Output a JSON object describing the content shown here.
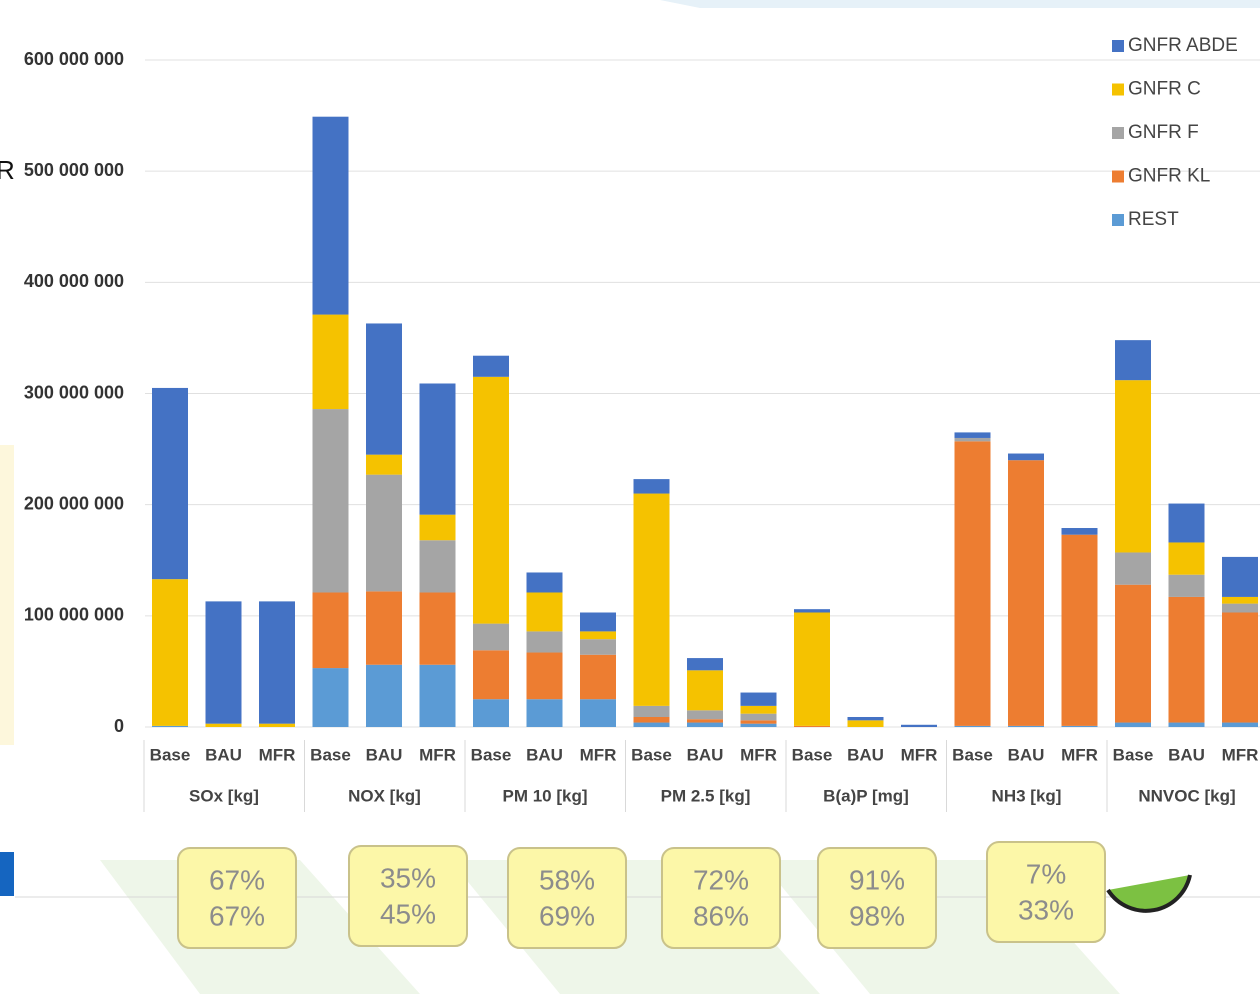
{
  "chart_data": {
    "type": "stacked-bar",
    "side_text": "R",
    "categories": [
      "Base",
      "BAU",
      "MFR",
      "Base",
      "BAU",
      "MFR",
      "Base",
      "BAU",
      "MFR",
      "Base",
      "BAU",
      "MFR",
      "Base",
      "BAU",
      "MFR",
      "Base",
      "BAU",
      "MFR",
      "Base",
      "BAU",
      "MFR"
    ],
    "groups": [
      "SOx [kg]",
      "NOX [kg]",
      "PM 10 [kg]",
      "PM 2.5 [kg]",
      "B(a)P [mg]",
      "NH3 [kg]",
      "NNVOC [kg]"
    ],
    "series": [
      {
        "name": "GNFR ABDE",
        "color": "#4472c4",
        "values": [
          172000000,
          110000000,
          110000000,
          178000000,
          118000000,
          118000000,
          19000000,
          18000000,
          17000000,
          13000000,
          11000000,
          12000000,
          3000000,
          3000000,
          2000000,
          5000000,
          6000000,
          6000000,
          36000000,
          35000000,
          36000000
        ]
      },
      {
        "name": "GNFR C",
        "color": "#f5c200",
        "values": [
          132000000,
          3000000,
          3000000,
          85000000,
          18000000,
          23000000,
          222000000,
          35000000,
          7000000,
          191000000,
          36000000,
          7000000,
          102000000,
          6000000,
          0,
          0,
          0,
          0,
          155000000,
          29000000,
          6000000
        ]
      },
      {
        "name": "GNFR F",
        "color": "#a5a5a5",
        "values": [
          0,
          0,
          0,
          165000000,
          105000000,
          47000000,
          24000000,
          19000000,
          14000000,
          10000000,
          8000000,
          6000000,
          0,
          0,
          0,
          3000000,
          0,
          0,
          29000000,
          20000000,
          8000000
        ]
      },
      {
        "name": "GNFR KL",
        "color": "#ed7d31",
        "values": [
          0,
          0,
          0,
          68000000,
          66000000,
          65000000,
          44000000,
          42000000,
          40000000,
          5000000,
          3000000,
          3000000,
          1000000,
          0,
          0,
          256000000,
          239000000,
          172000000,
          124000000,
          113000000,
          99000000
        ]
      },
      {
        "name": "REST",
        "color": "#5b9bd5",
        "values": [
          1000000,
          0,
          0,
          53000000,
          56000000,
          56000000,
          25000000,
          25000000,
          25000000,
          4000000,
          4000000,
          3000000,
          0,
          0,
          0,
          1000000,
          1000000,
          1000000,
          4000000,
          4000000,
          4000000
        ]
      }
    ],
    "ylim": [
      0,
      600000000
    ],
    "yticks": [
      0,
      {
        "value": 100000000,
        "label": "100 000 000"
      },
      {
        "value": 200000000,
        "label": "200 000 000"
      },
      {
        "value": 300000000,
        "label": "300 000 000"
      },
      {
        "value": 400000000,
        "label": "400 000 000"
      },
      {
        "value": 500000000,
        "label": "500 000 000"
      },
      {
        "value": 600000000,
        "label": "600 000 000"
      }
    ],
    "grid": true,
    "legend": "top-right",
    "annotations": [
      [
        "67%",
        "67%"
      ],
      [
        "35%",
        "45%"
      ],
      [
        "58%",
        "69%"
      ],
      [
        "72%",
        "86%"
      ],
      [
        "91%",
        "98%"
      ],
      [
        "7%",
        "33%"
      ]
    ]
  }
}
